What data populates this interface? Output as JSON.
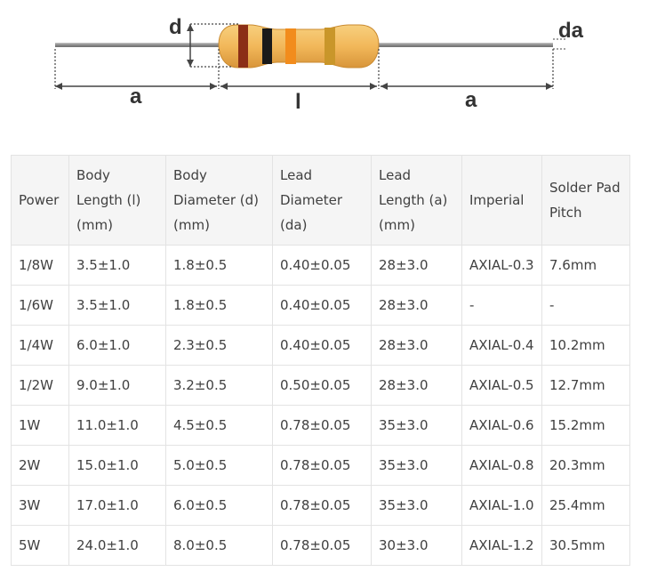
{
  "diagram": {
    "labels": {
      "d": "d",
      "da": "da",
      "a_left": "a",
      "l": "l",
      "a_right": "a"
    },
    "colors": {
      "lead": "#9a9a9a",
      "body": "#f2b85a",
      "body_shade": "#e9a544",
      "band1": "#8b2e16",
      "band2": "#1a1a1a",
      "band3": "#f28c1c",
      "band4": "#c9962a",
      "dimension_line": "#444444"
    }
  },
  "table": {
    "headers": [
      "Power",
      "Body Length (l) (mm)",
      "Body Diameter (d) (mm)",
      "Lead Diameter (da)",
      "Lead Length (a) (mm)",
      "Imperial",
      "Solder Pad Pitch"
    ],
    "rows": [
      [
        "1/8W",
        "3.5±1.0",
        "1.8±0.5",
        "0.40±0.05",
        "28±3.0",
        "AXIAL-0.3",
        "7.6mm"
      ],
      [
        "1/6W",
        "3.5±1.0",
        "1.8±0.5",
        "0.40±0.05",
        "28±3.0",
        "-",
        "-"
      ],
      [
        "1/4W",
        "6.0±1.0",
        "2.3±0.5",
        "0.40±0.05",
        "28±3.0",
        "AXIAL-0.4",
        "10.2mm"
      ],
      [
        "1/2W",
        "9.0±1.0",
        "3.2±0.5",
        "0.50±0.05",
        "28±3.0",
        "AXIAL-0.5",
        "12.7mm"
      ],
      [
        "1W",
        "11.0±1.0",
        "4.5±0.5",
        "0.78±0.05",
        "35±3.0",
        "AXIAL-0.6",
        "15.2mm"
      ],
      [
        "2W",
        "15.0±1.0",
        "5.0±0.5",
        "0.78±0.05",
        "35±3.0",
        "AXIAL-0.8",
        "20.3mm"
      ],
      [
        "3W",
        "17.0±1.0",
        "6.0±0.5",
        "0.78±0.05",
        "35±3.0",
        "AXIAL-1.0",
        "25.4mm"
      ],
      [
        "5W",
        "24.0±1.0",
        "8.0±0.5",
        "0.78±0.05",
        "30±3.0",
        "AXIAL-1.2",
        "30.5mm"
      ]
    ]
  }
}
